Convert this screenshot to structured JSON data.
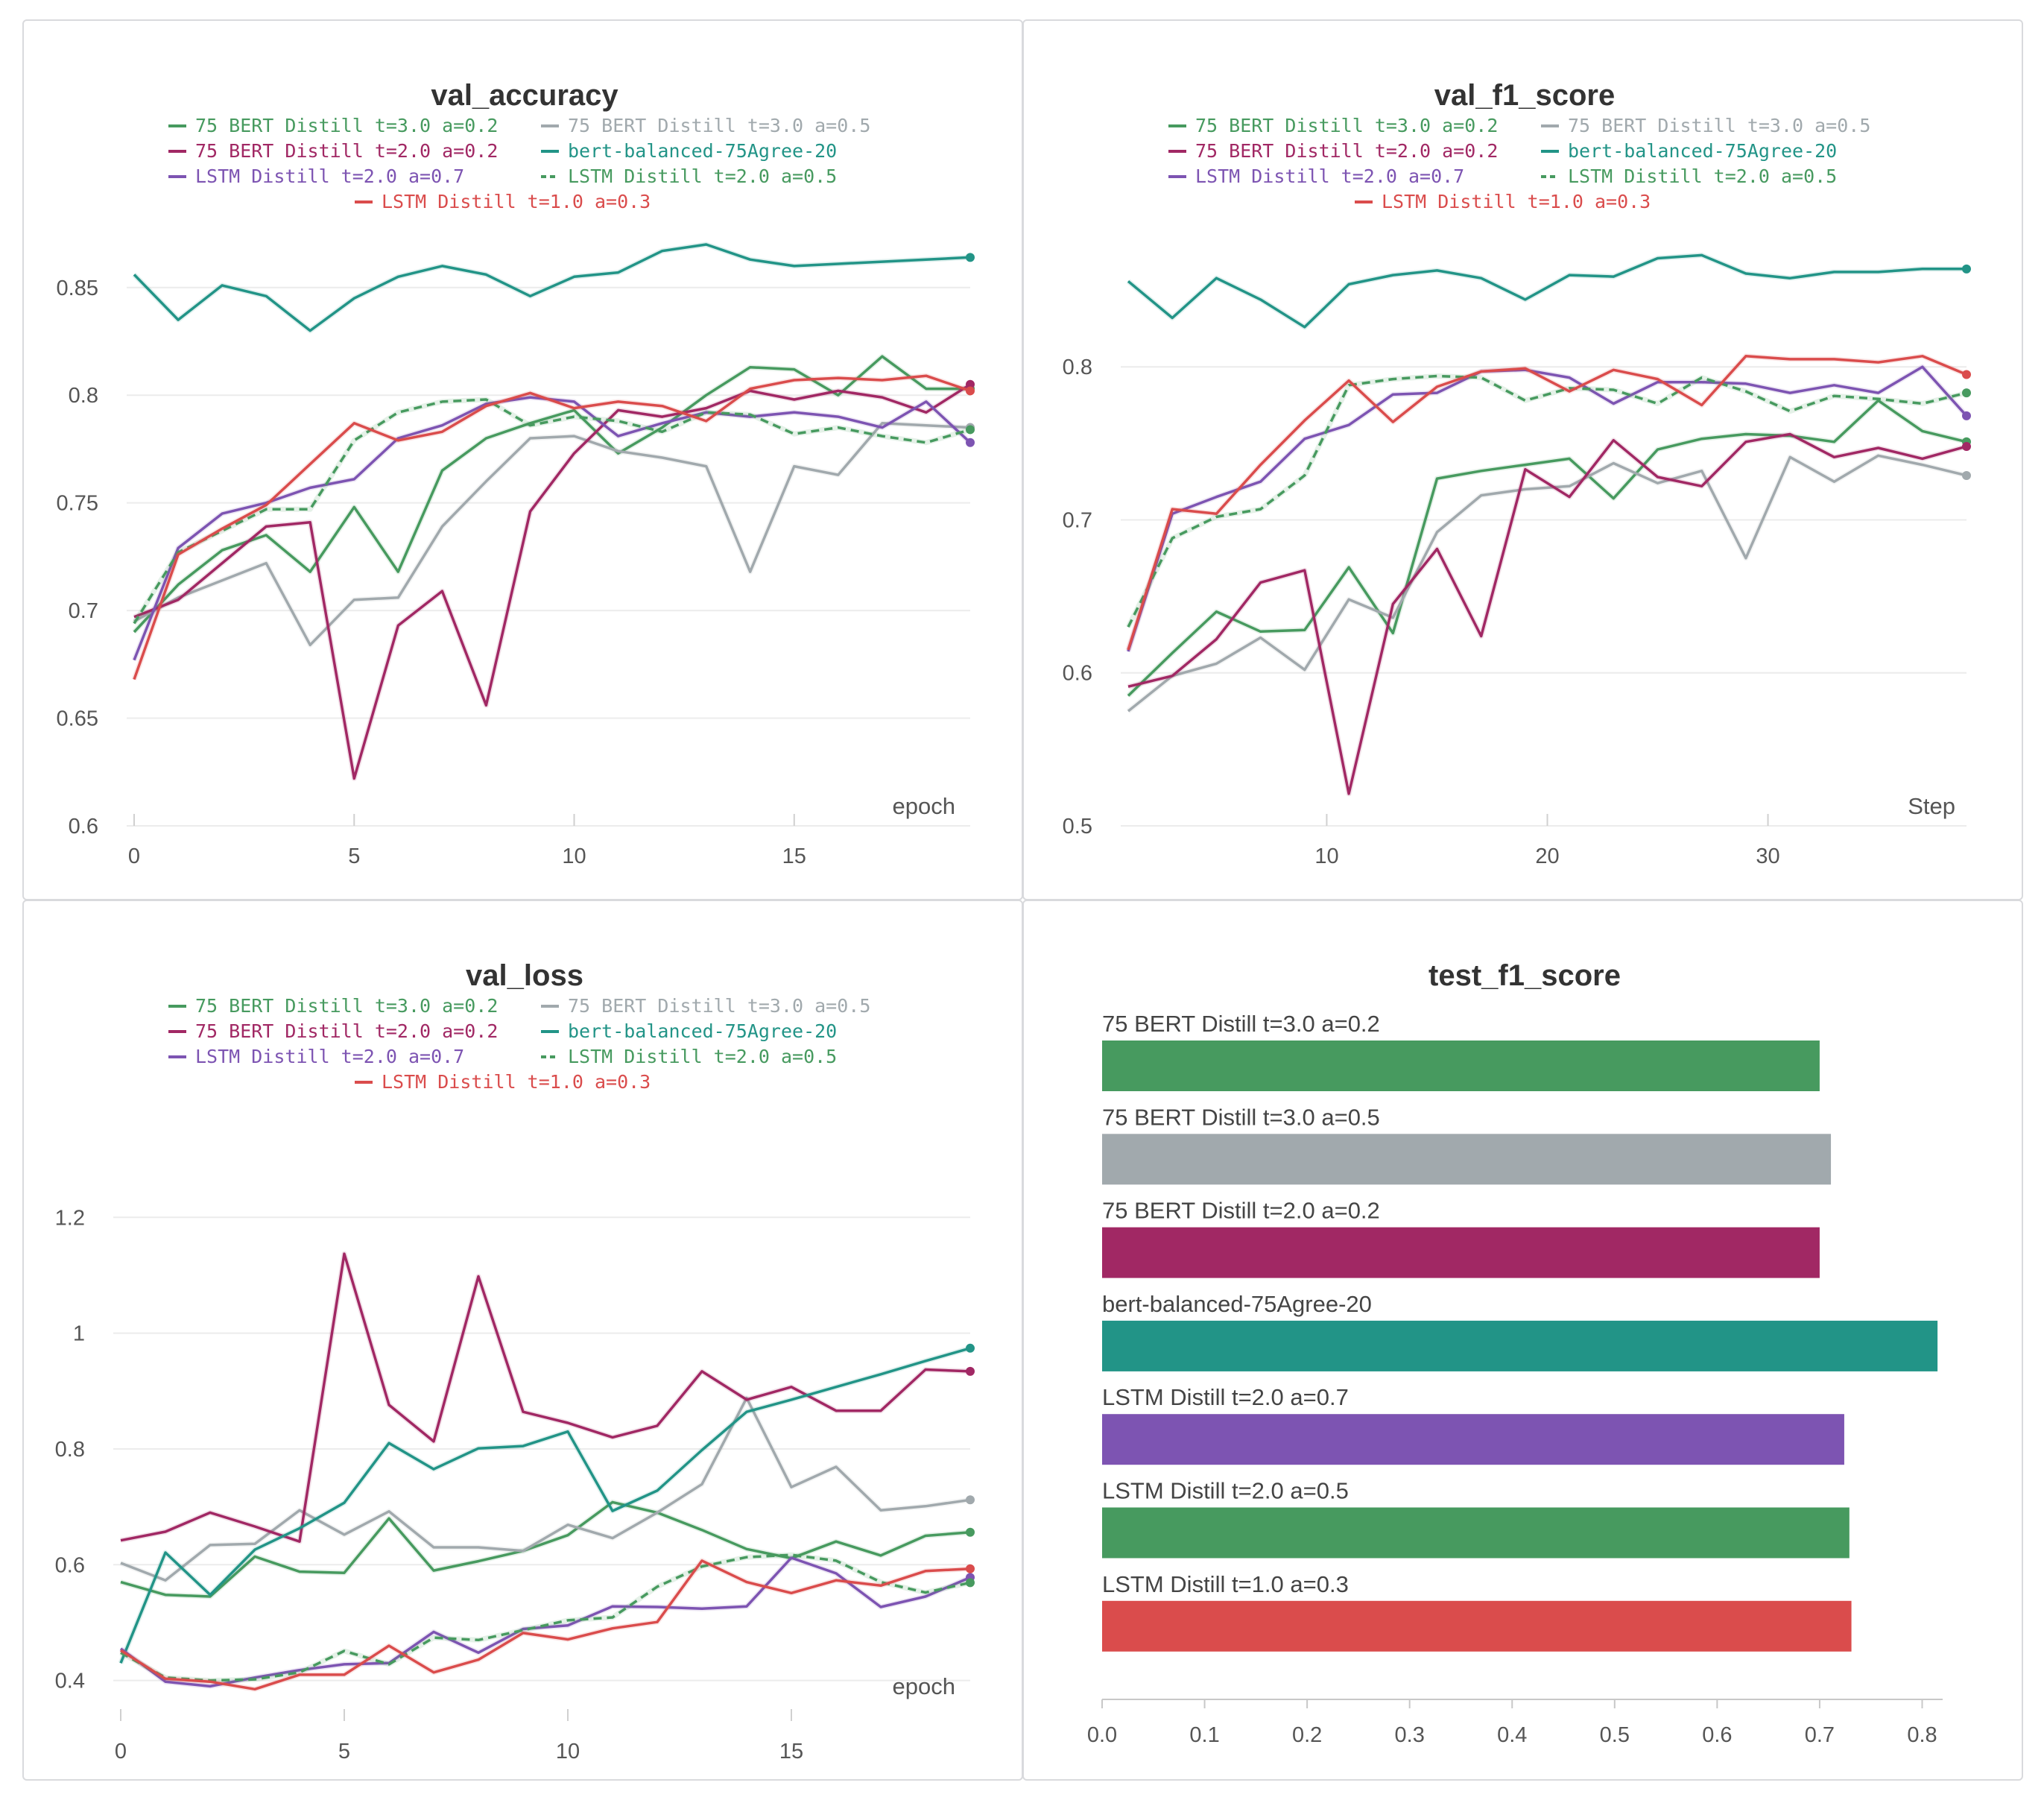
{
  "colors": {
    "bert_t3_a02": "#479a5f",
    "bert_t3_a05": "#a1a9ad",
    "bert_t2_a02": "#a12864",
    "bert_balanced": "#229487",
    "lstm_t2_a07": "#7d54b2",
    "lstm_t2_a05": "#479a5f",
    "lstm_t1_a03": "#da4c4c"
  },
  "legend": [
    {
      "key": "bert_t3_a02",
      "label": "75 BERT Distill t=3.0 a=0.2",
      "dash": false
    },
    {
      "key": "bert_t3_a05",
      "label": "75 BERT Distill t=3.0 a=0.5",
      "dash": false
    },
    {
      "key": "bert_t2_a02",
      "label": "75 BERT Distill t=2.0 a=0.2",
      "dash": false
    },
    {
      "key": "bert_balanced",
      "label": "bert-balanced-75Agree-20",
      "dash": false
    },
    {
      "key": "lstm_t2_a07",
      "label": "LSTM Distill t=2.0 a=0.7",
      "dash": false
    },
    {
      "key": "lstm_t2_a05",
      "label": "LSTM Distill t=2.0 a=0.5",
      "dash": true
    },
    {
      "key": "lstm_t1_a03",
      "label": "LSTM Distill t=1.0 a=0.3",
      "dash": false
    }
  ],
  "panels": {
    "val_accuracy": {
      "title": "val_accuracy"
    },
    "val_f1_score": {
      "title": "val_f1_score"
    },
    "val_loss": {
      "title": "val_loss"
    },
    "test_f1_score": {
      "title": "test_f1_score"
    }
  },
  "chart_data": [
    {
      "id": "val_accuracy",
      "type": "line",
      "title": "val_accuracy",
      "xlabel": "epoch",
      "ylabel": "",
      "xlim": [
        0,
        19
      ],
      "ylim": [
        0.6,
        0.87
      ],
      "xticks": [
        0,
        5,
        10,
        15
      ],
      "yticks": [
        0.6,
        0.65,
        0.7,
        0.75,
        0.8,
        0.85
      ],
      "ytick_labels": [
        "0.6",
        "0.65",
        "0.7",
        "0.75",
        "0.8",
        "0.85"
      ],
      "grid": true,
      "legend": "top",
      "x": [
        0,
        1,
        2,
        3,
        4,
        5,
        6,
        7,
        8,
        9,
        10,
        11,
        12,
        13,
        14,
        15,
        16,
        17,
        18,
        19
      ],
      "series": [
        {
          "key": "bert_t3_a02",
          "name": "75 BERT Distill t=3.0 a=0.2",
          "values": [
            0.69,
            0.712,
            0.728,
            0.735,
            0.718,
            0.748,
            0.718,
            0.765,
            0.78,
            0.787,
            0.793,
            0.773,
            0.785,
            0.8,
            0.813,
            0.812,
            0.8,
            0.818,
            0.803,
            0.803
          ]
        },
        {
          "key": "bert_t3_a05",
          "name": "75 BERT Distill t=3.0 a=0.5",
          "values": [
            0.695,
            0.706,
            0.714,
            0.722,
            0.684,
            0.705,
            0.706,
            0.739,
            0.76,
            0.78,
            0.781,
            0.774,
            0.771,
            0.767,
            0.718,
            0.767,
            0.763,
            0.787,
            0.786,
            0.785
          ]
        },
        {
          "key": "bert_t2_a02",
          "name": "75 BERT Distill t=2.0 a=0.2",
          "values": [
            0.697,
            0.705,
            0.722,
            0.739,
            0.741,
            0.622,
            0.693,
            0.709,
            0.656,
            0.746,
            0.773,
            0.793,
            0.79,
            0.794,
            0.802,
            0.798,
            0.802,
            0.799,
            0.792,
            0.805
          ]
        },
        {
          "key": "bert_balanced",
          "name": "bert-balanced-75Agree-20",
          "values": [
            0.856,
            0.835,
            0.851,
            0.846,
            0.83,
            0.845,
            0.855,
            0.86,
            0.856,
            0.846,
            0.855,
            0.857,
            0.867,
            0.87,
            0.863,
            0.86,
            0.861,
            0.862,
            0.863,
            0.864
          ]
        },
        {
          "key": "lstm_t2_a07",
          "name": "LSTM Distill t=2.0 a=0.7",
          "values": [
            0.677,
            0.729,
            0.745,
            0.75,
            0.757,
            0.761,
            0.78,
            0.786,
            0.796,
            0.799,
            0.797,
            0.781,
            0.787,
            0.792,
            0.79,
            0.792,
            0.79,
            0.785,
            0.797,
            0.778
          ]
        },
        {
          "key": "lstm_t2_a05",
          "name": "LSTM Distill t=2.0 a=0.5",
          "dash": true,
          "values": [
            0.694,
            0.727,
            0.737,
            0.747,
            0.747,
            0.779,
            0.792,
            0.797,
            0.798,
            0.786,
            0.79,
            0.788,
            0.783,
            0.792,
            0.791,
            0.782,
            0.785,
            0.781,
            0.778,
            0.784
          ]
        },
        {
          "key": "lstm_t1_a03",
          "name": "LSTM Distill t=1.0 a=0.3",
          "values": [
            0.668,
            0.726,
            0.738,
            0.749,
            0.768,
            0.787,
            0.779,
            0.783,
            0.795,
            0.801,
            0.794,
            0.797,
            0.795,
            0.788,
            0.803,
            0.807,
            0.808,
            0.807,
            0.809,
            0.802
          ]
        }
      ]
    },
    {
      "id": "val_f1_score",
      "type": "line",
      "title": "val_f1_score",
      "xlabel": "Step",
      "ylabel": "",
      "xlim": [
        1,
        39
      ],
      "ylim": [
        0.5,
        0.88
      ],
      "xticks": [
        10,
        20,
        30
      ],
      "yticks": [
        0.5,
        0.6,
        0.7,
        0.8
      ],
      "ytick_labels": [
        "0.5",
        "0.6",
        "0.7",
        "0.8"
      ],
      "grid": true,
      "legend": "top",
      "x": [
        1,
        3,
        5,
        7,
        9,
        11,
        13,
        15,
        17,
        19,
        21,
        23,
        25,
        27,
        29,
        31,
        33,
        35,
        37,
        39
      ],
      "series": [
        {
          "key": "bert_t3_a02",
          "name": "75 BERT Distill t=3.0 a=0.2",
          "values": [
            0.585,
            0.613,
            0.64,
            0.627,
            0.628,
            0.669,
            0.626,
            0.727,
            0.732,
            0.736,
            0.74,
            0.714,
            0.746,
            0.753,
            0.756,
            0.755,
            0.751,
            0.778,
            0.758,
            0.751
          ]
        },
        {
          "key": "bert_t3_a05",
          "name": "75 BERT Distill t=3.0 a=0.5",
          "values": [
            0.575,
            0.598,
            0.606,
            0.623,
            0.602,
            0.648,
            0.636,
            0.692,
            0.716,
            0.72,
            0.722,
            0.737,
            0.724,
            0.732,
            0.675,
            0.741,
            0.725,
            0.742,
            0.736,
            0.729
          ]
        },
        {
          "key": "bert_t2_a02",
          "name": "75 BERT Distill t=2.0 a=0.2",
          "values": [
            0.591,
            0.598,
            0.622,
            0.659,
            0.667,
            0.521,
            0.645,
            0.681,
            0.624,
            0.733,
            0.715,
            0.752,
            0.728,
            0.722,
            0.751,
            0.756,
            0.741,
            0.747,
            0.74,
            0.748
          ]
        },
        {
          "key": "bert_balanced",
          "name": "bert-balanced-75Agree-20",
          "values": [
            0.856,
            0.832,
            0.858,
            0.844,
            0.826,
            0.854,
            0.86,
            0.863,
            0.858,
            0.844,
            0.86,
            0.859,
            0.871,
            0.873,
            0.861,
            0.858,
            0.862,
            0.862,
            0.864,
            0.864
          ]
        },
        {
          "key": "lstm_t2_a07",
          "name": "LSTM Distill t=2.0 a=0.7",
          "values": [
            0.614,
            0.704,
            0.715,
            0.725,
            0.753,
            0.762,
            0.782,
            0.783,
            0.797,
            0.798,
            0.793,
            0.776,
            0.79,
            0.79,
            0.789,
            0.783,
            0.788,
            0.783,
            0.8,
            0.768
          ]
        },
        {
          "key": "lstm_t2_a05",
          "name": "LSTM Distill t=2.0 a=0.5",
          "dash": true,
          "values": [
            0.63,
            0.688,
            0.702,
            0.707,
            0.729,
            0.788,
            0.792,
            0.794,
            0.793,
            0.778,
            0.786,
            0.785,
            0.776,
            0.793,
            0.784,
            0.771,
            0.781,
            0.779,
            0.776,
            0.783
          ]
        },
        {
          "key": "lstm_t1_a03",
          "name": "LSTM Distill t=1.0 a=0.3",
          "values": [
            0.615,
            0.707,
            0.704,
            0.736,
            0.765,
            0.791,
            0.764,
            0.787,
            0.797,
            0.799,
            0.784,
            0.798,
            0.792,
            0.775,
            0.807,
            0.805,
            0.805,
            0.803,
            0.807,
            0.795
          ]
        }
      ]
    },
    {
      "id": "val_loss",
      "type": "line",
      "title": "val_loss",
      "xlabel": "epoch",
      "ylabel": "",
      "xlim": [
        0,
        19
      ],
      "ylim": [
        0.33,
        1.36
      ],
      "xticks": [
        0,
        5,
        10,
        15
      ],
      "yticks": [
        0.4,
        0.6,
        0.8,
        1.0,
        1.2
      ],
      "ytick_labels": [
        "0.4",
        "0.6",
        "0.8",
        "1",
        "1.2"
      ],
      "grid": true,
      "legend": "top",
      "x": [
        0,
        1,
        2,
        3,
        4,
        5,
        6,
        7,
        8,
        9,
        10,
        11,
        12,
        13,
        14,
        15,
        16,
        17,
        18,
        19
      ],
      "series": [
        {
          "key": "bert_t3_a02",
          "name": "75 BERT Distill t=3.0 a=0.2",
          "values": [
            0.57,
            0.548,
            0.545,
            0.614,
            0.588,
            0.586,
            0.68,
            0.59,
            0.606,
            0.624,
            0.651,
            0.708,
            0.69,
            0.66,
            0.627,
            0.611,
            0.64,
            0.616,
            0.65,
            0.656
          ]
        },
        {
          "key": "bert_t3_a05",
          "name": "75 BERT Distill t=3.0 a=0.5",
          "values": [
            0.603,
            0.573,
            0.634,
            0.636,
            0.694,
            0.652,
            0.692,
            0.63,
            0.63,
            0.624,
            0.669,
            0.646,
            0.69,
            0.739,
            0.888,
            0.734,
            0.769,
            0.694,
            0.701,
            0.712
          ]
        },
        {
          "key": "bert_t2_a02",
          "name": "75 BERT Distill t=2.0 a=0.2",
          "values": [
            0.642,
            0.657,
            0.69,
            0.666,
            0.64,
            1.137,
            0.876,
            0.813,
            1.098,
            0.864,
            0.845,
            0.82,
            0.84,
            0.934,
            0.885,
            0.907,
            0.866,
            0.866,
            0.937,
            0.934
          ]
        },
        {
          "key": "bert_balanced",
          "name": "bert-balanced-75Agree-20",
          "values": [
            0.43,
            0.621,
            0.548,
            0.626,
            0.663,
            0.707,
            0.81,
            0.765,
            0.801,
            0.805,
            0.83,
            0.693,
            0.728,
            0.798,
            0.864,
            0.885,
            0.907,
            0.929,
            0.952,
            0.974
          ]
        },
        {
          "key": "lstm_t2_a07",
          "name": "LSTM Distill t=2.0 a=0.7",
          "values": [
            0.455,
            0.398,
            0.39,
            0.405,
            0.418,
            0.428,
            0.43,
            0.484,
            0.448,
            0.489,
            0.495,
            0.528,
            0.527,
            0.524,
            0.528,
            0.612,
            0.585,
            0.527,
            0.545,
            0.578
          ]
        },
        {
          "key": "lstm_t2_a05",
          "name": "LSTM Distill t=2.0 a=0.5",
          "dash": true,
          "values": [
            0.448,
            0.405,
            0.4,
            0.402,
            0.414,
            0.451,
            0.428,
            0.474,
            0.47,
            0.487,
            0.504,
            0.509,
            0.562,
            0.597,
            0.613,
            0.617,
            0.607,
            0.57,
            0.552,
            0.569
          ]
        },
        {
          "key": "lstm_t1_a03",
          "name": "LSTM Distill t=1.0 a=0.3",
          "values": [
            0.452,
            0.403,
            0.398,
            0.385,
            0.41,
            0.41,
            0.46,
            0.414,
            0.436,
            0.482,
            0.471,
            0.49,
            0.501,
            0.607,
            0.57,
            0.551,
            0.573,
            0.564,
            0.589,
            0.593
          ]
        }
      ]
    },
    {
      "id": "test_f1_score",
      "type": "bar",
      "orientation": "horizontal",
      "title": "test_f1_score",
      "xlabel": "",
      "ylabel": "",
      "xlim": [
        0,
        0.82
      ],
      "xticks": [
        0.0,
        0.1,
        0.2,
        0.3,
        0.4,
        0.5,
        0.6,
        0.7,
        0.8
      ],
      "xtick_labels": [
        "0.0",
        "0.1",
        "0.2",
        "0.3",
        "0.4",
        "0.5",
        "0.6",
        "0.7",
        "0.8"
      ],
      "grid": false,
      "categories": [
        "75 BERT Distill t=3.0 a=0.2",
        "75 BERT Distill t=3.0 a=0.5",
        "75 BERT Distill t=2.0 a=0.2",
        "bert-balanced-75Agree-20",
        "LSTM Distill t=2.0 a=0.7",
        "LSTM Distill t=2.0 a=0.5",
        "LSTM Distill t=1.0 a=0.3"
      ],
      "keys": [
        "bert_t3_a02",
        "bert_t3_a05",
        "bert_t2_a02",
        "bert_balanced",
        "lstm_t2_a07",
        "lstm_t2_a05",
        "lstm_t1_a03"
      ],
      "values": [
        0.7,
        0.711,
        0.7,
        0.815,
        0.724,
        0.729,
        0.731
      ]
    }
  ]
}
